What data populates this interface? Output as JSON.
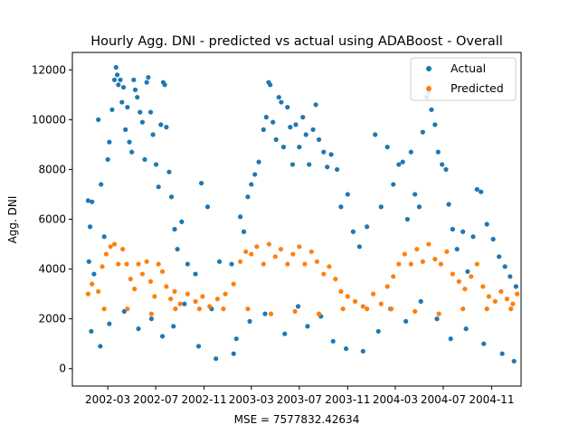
{
  "chart_data": {
    "type": "scatter",
    "title": "Hourly Agg. DNI - predicted vs actual using ADABoost - Overall",
    "xlabel": "MSE = 7577832.42634",
    "ylabel": "Agg. DNI",
    "x_type": "date",
    "xlim": [
      "2001-12-01",
      "2005-01-15"
    ],
    "ylim": [
      -700,
      12700
    ],
    "x_ticks": [
      "2002-03",
      "2002-07",
      "2002-11",
      "2003-03",
      "2003-07",
      "2003-11",
      "2004-03",
      "2004-07",
      "2004-11"
    ],
    "y_ticks": [
      0,
      2000,
      4000,
      6000,
      8000,
      10000,
      12000
    ],
    "legend_position": "top-right",
    "grid": false,
    "series": [
      {
        "name": "Actual",
        "color": "#1f77b4",
        "points": [
          [
            "2002-01-10",
            6750
          ],
          [
            "2002-01-20",
            6700
          ],
          [
            "2002-01-15",
            5700
          ],
          [
            "2002-01-12",
            4300
          ],
          [
            "2002-01-25",
            3800
          ],
          [
            "2002-02-05",
            10000
          ],
          [
            "2002-02-12",
            7400
          ],
          [
            "2002-02-20",
            5300
          ],
          [
            "2002-03-01",
            8400
          ],
          [
            "2002-03-05",
            9100
          ],
          [
            "2002-03-12",
            10400
          ],
          [
            "2002-03-18",
            11600
          ],
          [
            "2002-03-22",
            12100
          ],
          [
            "2002-03-25",
            11800
          ],
          [
            "2002-03-28",
            11400
          ],
          [
            "2002-04-02",
            11600
          ],
          [
            "2002-04-06",
            10700
          ],
          [
            "2002-04-10",
            11300
          ],
          [
            "2002-04-15",
            9600
          ],
          [
            "2002-04-20",
            10500
          ],
          [
            "2002-04-25",
            9100
          ],
          [
            "2002-05-01",
            8700
          ],
          [
            "2002-05-06",
            11600
          ],
          [
            "2002-05-10",
            11200
          ],
          [
            "2002-05-15",
            10900
          ],
          [
            "2002-05-22",
            10300
          ],
          [
            "2002-05-28",
            9900
          ],
          [
            "2002-06-03",
            8400
          ],
          [
            "2002-06-08",
            11500
          ],
          [
            "2002-06-12",
            11700
          ],
          [
            "2002-06-18",
            10300
          ],
          [
            "2002-06-24",
            9400
          ],
          [
            "2002-07-02",
            8200
          ],
          [
            "2002-07-08",
            7300
          ],
          [
            "2002-07-14",
            9800
          ],
          [
            "2002-07-20",
            11500
          ],
          [
            "2002-07-24",
            11400
          ],
          [
            "2002-07-28",
            9700
          ],
          [
            "2002-08-04",
            7900
          ],
          [
            "2002-08-10",
            6900
          ],
          [
            "2002-08-18",
            5600
          ],
          [
            "2002-08-25",
            4800
          ],
          [
            "2002-09-05",
            5900
          ],
          [
            "2002-09-20",
            4200
          ],
          [
            "2002-10-10",
            3800
          ],
          [
            "2002-10-25",
            7450
          ],
          [
            "2002-11-10",
            6500
          ],
          [
            "2002-11-20",
            2400
          ],
          [
            "2002-12-10",
            4300
          ],
          [
            "2003-01-10",
            4200
          ],
          [
            "2003-01-22",
            1200
          ],
          [
            "2003-02-01",
            6100
          ],
          [
            "2003-02-10",
            5500
          ],
          [
            "2003-02-20",
            6900
          ],
          [
            "2003-03-01",
            7400
          ],
          [
            "2003-03-10",
            7800
          ],
          [
            "2003-03-20",
            8300
          ],
          [
            "2003-04-01",
            9600
          ],
          [
            "2003-04-08",
            10100
          ],
          [
            "2003-04-14",
            11500
          ],
          [
            "2003-04-18",
            11400
          ],
          [
            "2003-04-25",
            9900
          ],
          [
            "2003-05-03",
            9200
          ],
          [
            "2003-05-10",
            10900
          ],
          [
            "2003-05-16",
            10700
          ],
          [
            "2003-05-22",
            8900
          ],
          [
            "2003-06-01",
            10500
          ],
          [
            "2003-06-08",
            9700
          ],
          [
            "2003-06-14",
            8200
          ],
          [
            "2003-06-22",
            9800
          ],
          [
            "2003-07-01",
            8900
          ],
          [
            "2003-07-10",
            10100
          ],
          [
            "2003-07-18",
            9400
          ],
          [
            "2003-07-26",
            8200
          ],
          [
            "2003-08-05",
            9600
          ],
          [
            "2003-08-12",
            10600
          ],
          [
            "2003-08-20",
            9200
          ],
          [
            "2003-09-01",
            8700
          ],
          [
            "2003-09-10",
            8100
          ],
          [
            "2003-09-20",
            8600
          ],
          [
            "2003-10-05",
            8000
          ],
          [
            "2003-10-15",
            6500
          ],
          [
            "2003-11-01",
            7000
          ],
          [
            "2003-11-15",
            5500
          ],
          [
            "2003-12-01",
            4900
          ],
          [
            "2003-12-20",
            5700
          ],
          [
            "2004-01-10",
            9400
          ],
          [
            "2004-01-25",
            6500
          ],
          [
            "2004-02-10",
            8900
          ],
          [
            "2004-02-25",
            7400
          ],
          [
            "2004-03-10",
            8200
          ],
          [
            "2004-03-20",
            8300
          ],
          [
            "2004-04-01",
            6000
          ],
          [
            "2004-04-10",
            8700
          ],
          [
            "2004-04-20",
            7000
          ],
          [
            "2004-05-01",
            6500
          ],
          [
            "2004-05-10",
            9500
          ],
          [
            "2004-05-20",
            10900
          ],
          [
            "2004-05-25",
            11100
          ],
          [
            "2004-06-01",
            10400
          ],
          [
            "2004-06-10",
            9800
          ],
          [
            "2004-06-18",
            8700
          ],
          [
            "2004-06-28",
            8200
          ],
          [
            "2004-07-08",
            8000
          ],
          [
            "2004-07-15",
            6600
          ],
          [
            "2004-07-25",
            5600
          ],
          [
            "2004-08-05",
            4800
          ],
          [
            "2004-08-20",
            5500
          ],
          [
            "2004-09-01",
            3900
          ],
          [
            "2004-09-15",
            5300
          ],
          [
            "2004-09-25",
            7200
          ],
          [
            "2004-10-05",
            7100
          ],
          [
            "2004-10-20",
            5800
          ],
          [
            "2004-11-05",
            5200
          ],
          [
            "2004-11-20",
            4500
          ],
          [
            "2004-12-05",
            4100
          ],
          [
            "2004-12-18",
            3700
          ],
          [
            "2005-01-02",
            3300
          ],
          [
            "2002-01-18",
            1500
          ],
          [
            "2002-02-10",
            900
          ],
          [
            "2002-03-05",
            1800
          ],
          [
            "2002-04-12",
            2300
          ],
          [
            "2002-05-18",
            1600
          ],
          [
            "2002-06-20",
            2000
          ],
          [
            "2002-07-18",
            1300
          ],
          [
            "2002-08-15",
            1700
          ],
          [
            "2002-09-12",
            2600
          ],
          [
            "2002-10-18",
            900
          ],
          [
            "2002-12-01",
            400
          ],
          [
            "2003-01-15",
            600
          ],
          [
            "2003-02-25",
            1900
          ],
          [
            "2003-04-05",
            2200
          ],
          [
            "2003-05-25",
            1400
          ],
          [
            "2003-06-28",
            2500
          ],
          [
            "2003-07-22",
            1700
          ],
          [
            "2003-08-25",
            2100
          ],
          [
            "2003-09-25",
            1100
          ],
          [
            "2003-10-28",
            800
          ],
          [
            "2003-12-10",
            700
          ],
          [
            "2004-01-18",
            1500
          ],
          [
            "2004-02-18",
            2400
          ],
          [
            "2004-03-28",
            1900
          ],
          [
            "2004-05-05",
            2700
          ],
          [
            "2004-06-15",
            2000
          ],
          [
            "2004-07-20",
            1200
          ],
          [
            "2004-08-28",
            1600
          ],
          [
            "2004-10-12",
            1000
          ],
          [
            "2004-11-28",
            600
          ],
          [
            "2004-12-28",
            300
          ]
        ]
      },
      {
        "name": "Predicted",
        "color": "#ff7f0e",
        "points": [
          [
            "2002-01-10",
            3000
          ],
          [
            "2002-01-20",
            3400
          ],
          [
            "2002-02-05",
            3100
          ],
          [
            "2002-02-15",
            4100
          ],
          [
            "2002-02-25",
            4600
          ],
          [
            "2002-03-08",
            4900
          ],
          [
            "2002-03-18",
            5000
          ],
          [
            "2002-03-28",
            4200
          ],
          [
            "2002-04-08",
            4800
          ],
          [
            "2002-04-18",
            4200
          ],
          [
            "2002-04-28",
            3600
          ],
          [
            "2002-05-08",
            3200
          ],
          [
            "2002-05-18",
            4200
          ],
          [
            "2002-05-28",
            3800
          ],
          [
            "2002-06-08",
            4300
          ],
          [
            "2002-06-18",
            3500
          ],
          [
            "2002-06-28",
            2900
          ],
          [
            "2002-07-08",
            4200
          ],
          [
            "2002-07-18",
            3900
          ],
          [
            "2002-07-28",
            3300
          ],
          [
            "2002-08-08",
            2800
          ],
          [
            "2002-08-18",
            3100
          ],
          [
            "2002-09-01",
            2600
          ],
          [
            "2002-09-20",
            3000
          ],
          [
            "2002-10-10",
            2700
          ],
          [
            "2002-10-28",
            2900
          ],
          [
            "2002-11-15",
            2500
          ],
          [
            "2002-12-05",
            2800
          ],
          [
            "2002-12-25",
            3000
          ],
          [
            "2003-01-15",
            3400
          ],
          [
            "2003-02-01",
            4300
          ],
          [
            "2003-02-15",
            4700
          ],
          [
            "2003-03-01",
            4600
          ],
          [
            "2003-03-15",
            4900
          ],
          [
            "2003-04-01",
            4200
          ],
          [
            "2003-04-15",
            5000
          ],
          [
            "2003-05-01",
            4500
          ],
          [
            "2003-05-15",
            4800
          ],
          [
            "2003-06-01",
            4200
          ],
          [
            "2003-06-15",
            4600
          ],
          [
            "2003-07-01",
            4900
          ],
          [
            "2003-07-15",
            4200
          ],
          [
            "2003-08-01",
            4700
          ],
          [
            "2003-08-15",
            4300
          ],
          [
            "2003-09-01",
            3800
          ],
          [
            "2003-09-15",
            4100
          ],
          [
            "2003-10-01",
            3600
          ],
          [
            "2003-10-15",
            3100
          ],
          [
            "2003-11-01",
            2900
          ],
          [
            "2003-11-20",
            2700
          ],
          [
            "2003-12-10",
            2500
          ],
          [
            "2004-01-05",
            3000
          ],
          [
            "2004-01-25",
            2600
          ],
          [
            "2004-02-10",
            3300
          ],
          [
            "2004-02-25",
            3700
          ],
          [
            "2004-03-10",
            4200
          ],
          [
            "2004-03-25",
            4600
          ],
          [
            "2004-04-10",
            4200
          ],
          [
            "2004-04-25",
            4800
          ],
          [
            "2004-05-10",
            4300
          ],
          [
            "2004-05-25",
            5000
          ],
          [
            "2004-06-10",
            4400
          ],
          [
            "2004-06-25",
            4200
          ],
          [
            "2004-07-10",
            4700
          ],
          [
            "2004-07-25",
            3800
          ],
          [
            "2004-08-10",
            3500
          ],
          [
            "2004-08-25",
            3200
          ],
          [
            "2004-09-10",
            3700
          ],
          [
            "2004-09-25",
            4200
          ],
          [
            "2004-10-10",
            3300
          ],
          [
            "2004-10-25",
            2900
          ],
          [
            "2004-11-10",
            2700
          ],
          [
            "2004-11-25",
            3100
          ],
          [
            "2004-12-10",
            2800
          ],
          [
            "2004-12-25",
            2600
          ],
          [
            "2005-01-05",
            3000
          ],
          [
            "2002-02-20",
            2400
          ],
          [
            "2002-04-20",
            2400
          ],
          [
            "2002-06-20",
            2200
          ],
          [
            "2002-08-20",
            2400
          ],
          [
            "2002-10-20",
            2400
          ],
          [
            "2002-12-20",
            2400
          ],
          [
            "2003-02-20",
            2400
          ],
          [
            "2003-04-20",
            2200
          ],
          [
            "2003-06-20",
            2300
          ],
          [
            "2003-08-20",
            2200
          ],
          [
            "2003-10-20",
            2400
          ],
          [
            "2003-12-20",
            2400
          ],
          [
            "2004-02-20",
            2400
          ],
          [
            "2004-04-20",
            2300
          ],
          [
            "2004-06-20",
            2200
          ],
          [
            "2004-08-20",
            2400
          ],
          [
            "2004-10-20",
            2400
          ],
          [
            "2004-12-20",
            2400
          ]
        ]
      }
    ]
  }
}
